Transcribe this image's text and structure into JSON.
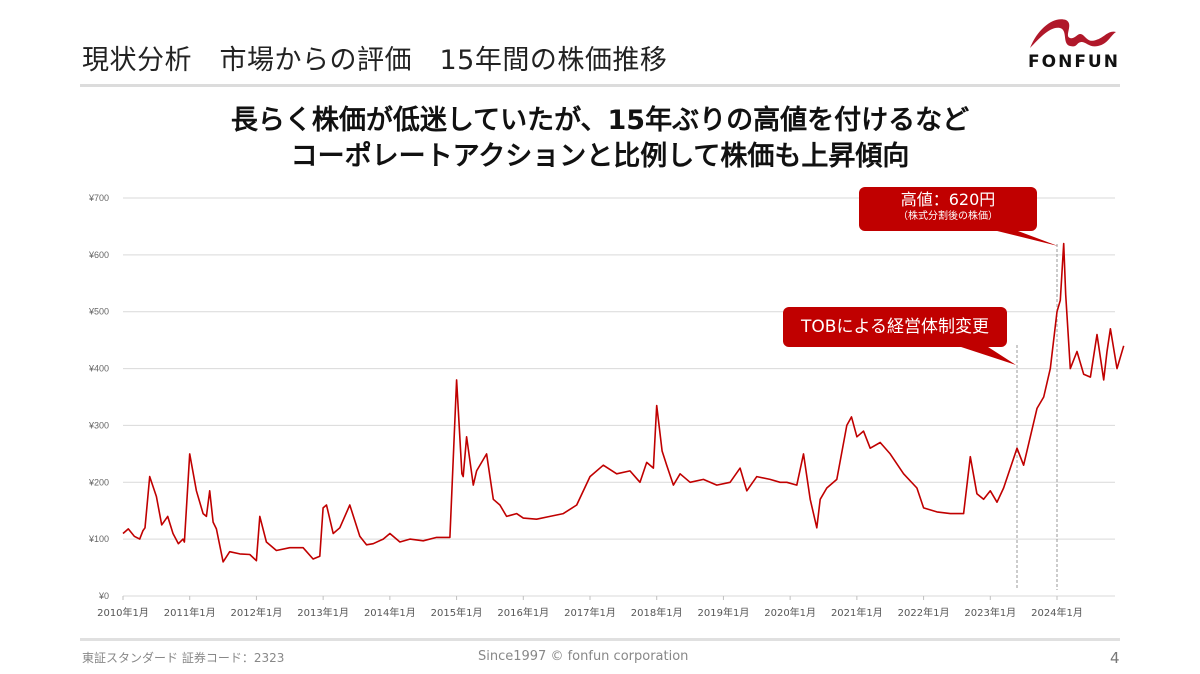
{
  "slide": {
    "title": "現状分析　市場からの評価　15年間の株価推移",
    "logo": {
      "text": "FONFUN",
      "icon": "fonfun-wave-logo-icon",
      "color": "#b0182a"
    },
    "headline": {
      "line1": "長らく株価が低迷していたが、15年ぶりの高値を付けるなど",
      "line2": "コーポレートアクションと比例して株価も上昇傾向"
    },
    "callouts": {
      "high": {
        "main": "高値：620円",
        "sub": "（株式分割後の株価）"
      },
      "tob": {
        "label": "TOBによる経営体制変更"
      }
    },
    "footer": {
      "left": "東証スタンダード 証券コード：2323",
      "center": "Since1997 © fonfun corporation",
      "page": "4"
    },
    "colors": {
      "line": "#c00000",
      "callout": "#c00000",
      "grid": "#d9d9d9"
    }
  },
  "chart_data": {
    "type": "line",
    "title": "15年間の株価推移",
    "xlabel": "",
    "ylabel": "",
    "ylim": [
      0,
      700
    ],
    "y_ticks": [
      "¥0",
      "¥100",
      "¥200",
      "¥300",
      "¥400",
      "¥500",
      "¥600",
      "¥700"
    ],
    "x_ticks": [
      "2010年1月",
      "2011年1月",
      "2012年1月",
      "2013年1月",
      "2014年1月",
      "2015年1月",
      "2016年1月",
      "2017年1月",
      "2018年1月",
      "2019年1月",
      "2020年1月",
      "2021年1月",
      "2022年1月",
      "2023年1月",
      "2024年1月"
    ],
    "grid": true,
    "legend": "none",
    "annotations": [
      {
        "text": "高値：620円（株式分割後の株価）",
        "x": 2024.13,
        "y": 620
      },
      {
        "text": "TOBによる経営体制変更",
        "x": 2023.5,
        "y": 430
      }
    ],
    "series": [
      {
        "name": "株価",
        "x": [
          2010.0,
          2010.08,
          2010.17,
          2010.25,
          2010.3,
          2010.33,
          2010.4,
          2010.5,
          2010.58,
          2010.67,
          2010.75,
          2010.83,
          2010.9,
          2010.92,
          2011.0,
          2011.1,
          2011.2,
          2011.25,
          2011.3,
          2011.35,
          2011.4,
          2011.5,
          2011.6,
          2011.75,
          2011.9,
          2012.0,
          2012.05,
          2012.15,
          2012.3,
          2012.5,
          2012.7,
          2012.85,
          2012.95,
          2013.0,
          2013.05,
          2013.15,
          2013.25,
          2013.4,
          2013.55,
          2013.65,
          2013.75,
          2013.9,
          2014.0,
          2014.15,
          2014.3,
          2014.5,
          2014.7,
          2014.9,
          2015.0,
          2015.08,
          2015.1,
          2015.15,
          2015.25,
          2015.3,
          2015.45,
          2015.55,
          2015.65,
          2015.75,
          2015.9,
          2016.0,
          2016.2,
          2016.4,
          2016.6,
          2016.8,
          2017.0,
          2017.2,
          2017.4,
          2017.6,
          2017.75,
          2017.85,
          2017.95,
          2018.0,
          2018.08,
          2018.15,
          2018.25,
          2018.35,
          2018.5,
          2018.7,
          2018.9,
          2019.1,
          2019.25,
          2019.35,
          2019.5,
          2019.7,
          2019.85,
          2019.95,
          2020.1,
          2020.2,
          2020.3,
          2020.4,
          2020.45,
          2020.55,
          2020.7,
          2020.85,
          2020.92,
          2021.0,
          2021.1,
          2021.2,
          2021.35,
          2021.5,
          2021.7,
          2021.9,
          2022.0,
          2022.2,
          2022.4,
          2022.6,
          2022.7,
          2022.8,
          2022.9,
          2023.0,
          2023.1,
          2023.2,
          2023.3,
          2023.4,
          2023.5,
          2023.6,
          2023.7,
          2023.8,
          2023.9,
          2024.0,
          2024.05,
          2024.1,
          2024.13,
          2024.2,
          2024.3,
          2024.4,
          2024.5,
          2024.6,
          2024.7,
          2024.75,
          2024.8,
          2024.9,
          2025.0
        ],
        "values": [
          110,
          118,
          105,
          100,
          115,
          120,
          210,
          175,
          125,
          140,
          110,
          92,
          100,
          95,
          250,
          185,
          145,
          140,
          185,
          130,
          118,
          60,
          78,
          74,
          73,
          62,
          140,
          95,
          80,
          85,
          85,
          65,
          70,
          155,
          160,
          110,
          120,
          160,
          105,
          90,
          92,
          100,
          110,
          95,
          100,
          97,
          103,
          103,
          380,
          215,
          210,
          280,
          195,
          220,
          250,
          170,
          160,
          140,
          145,
          137,
          135,
          140,
          145,
          160,
          210,
          230,
          215,
          220,
          200,
          235,
          225,
          335,
          255,
          230,
          195,
          215,
          200,
          205,
          195,
          200,
          225,
          185,
          210,
          205,
          200,
          200,
          195,
          250,
          170,
          120,
          170,
          190,
          205,
          300,
          315,
          280,
          290,
          260,
          270,
          250,
          215,
          190,
          155,
          148,
          145,
          145,
          245,
          180,
          170,
          185,
          165,
          190,
          225,
          260,
          230,
          280,
          330,
          350,
          400,
          500,
          520,
          620,
          530,
          400,
          430,
          390,
          385,
          460,
          380,
          430,
          470,
          400,
          440
        ]
      }
    ]
  }
}
